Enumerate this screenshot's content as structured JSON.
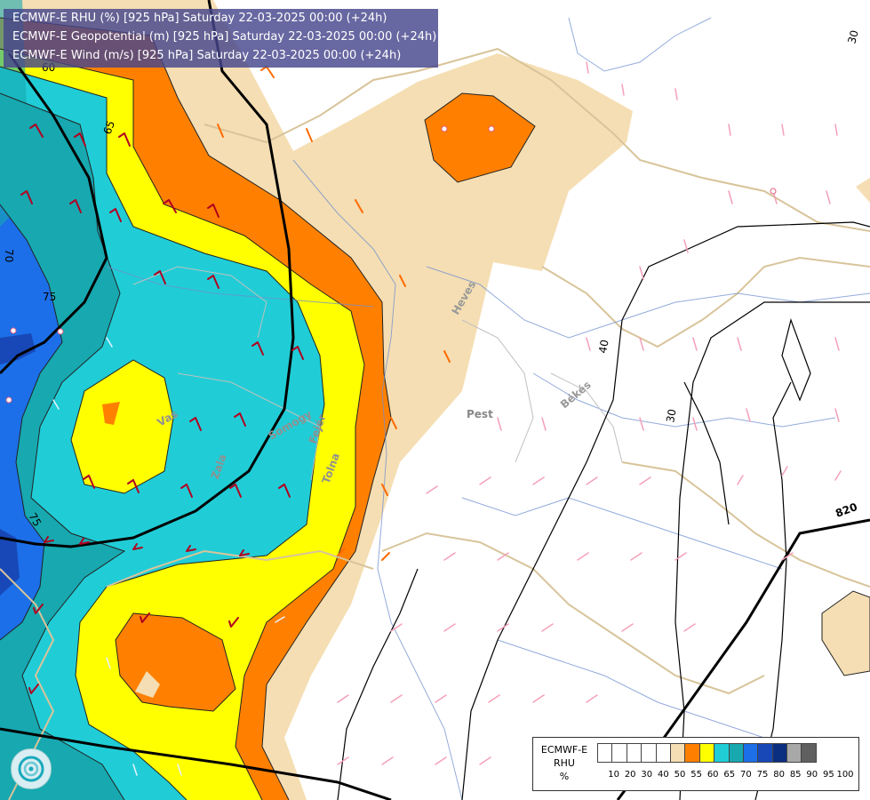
{
  "header": {
    "lines": [
      "ECMWF-E RHU (%) [925 hPa] Saturday 22-03-2025 00:00 (+24h)",
      "ECMWF-E Geopotential (m) [925 hPa] Saturday 22-03-2025 00:00 (+24h)",
      "ECMWF-E Wind (m/s) [925 hPa] Saturday 22-03-2025 00:00 (+24h)"
    ]
  },
  "map_labels": {
    "places": [
      "Pest",
      "Heves",
      "Békés",
      "Vas",
      "Zala",
      "Somogy",
      "Tolna",
      "Fejér"
    ],
    "contours": [
      "60",
      "65",
      "70",
      "75",
      "75",
      "40",
      "30",
      "820",
      "30"
    ]
  },
  "legend": {
    "title_lines": [
      "ECMWF-E",
      "RHU",
      "%"
    ],
    "classes": [
      {
        "color": "#ffffff"
      },
      {
        "color": "#ffffff"
      },
      {
        "color": "#ffffff"
      },
      {
        "color": "#ffffff"
      },
      {
        "color": "#ffffff"
      },
      {
        "color": "#f5deb3"
      },
      {
        "color": "#ff8000"
      },
      {
        "color": "#ffff00"
      },
      {
        "color": "#20cdd6"
      },
      {
        "color": "#17a8b0"
      },
      {
        "color": "#1c6fe8"
      },
      {
        "color": "#1848b8"
      },
      {
        "color": "#0b2f80"
      },
      {
        "color": "#a8a8a8"
      },
      {
        "color": "#606060"
      }
    ],
    "ticks": [
      "10",
      "20",
      "30",
      "40",
      "50",
      "55",
      "60",
      "65",
      "70",
      "75",
      "80",
      "85",
      "90",
      "95",
      "100"
    ]
  }
}
